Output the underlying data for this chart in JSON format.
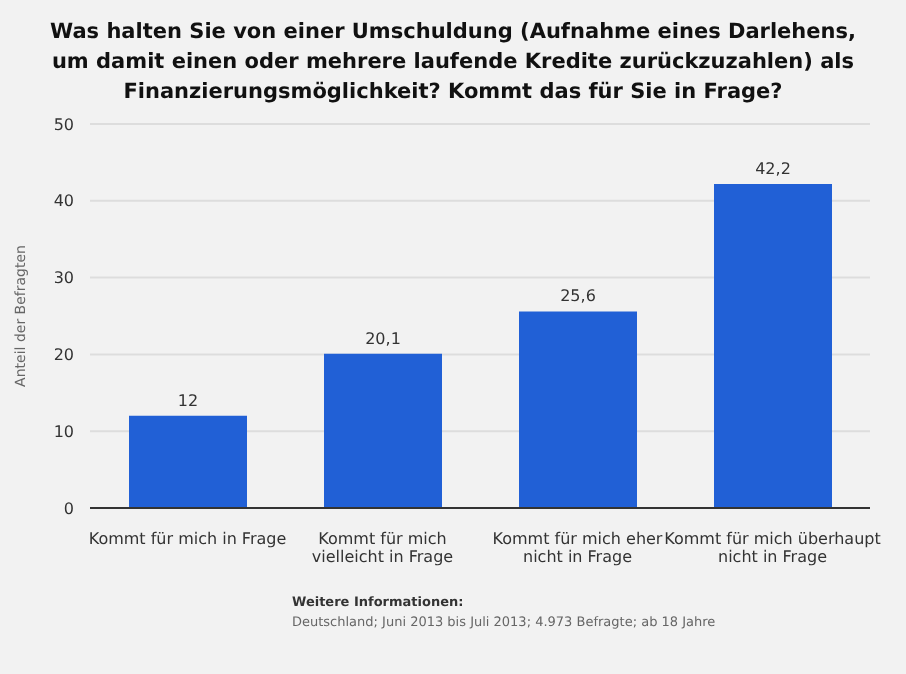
{
  "chart_data": {
    "type": "bar",
    "title": "Was halten Sie von einer Umschuldung (Aufnahme eines Darlehens, um damit einen oder mehrere laufende Kredite zurückzuzahlen) als Finanzierungsmöglichkeit? Kommt das für Sie in Frage?",
    "ylabel": "Anteil der Befragten",
    "categories": [
      "Kommt für mich in Frage",
      "Kommt für mich vielleicht in Frage",
      "Kommt für mich eher nicht in Frage",
      "Kommt für mich überhaupt nicht in Frage"
    ],
    "values": [
      12,
      20.1,
      25.6,
      42.2
    ],
    "value_labels": [
      "12",
      "20,1",
      "25,6",
      "42,2"
    ],
    "color": "#2160d6",
    "ylim": [
      0,
      50
    ],
    "yticks": [
      0,
      10,
      20,
      30,
      40,
      50
    ],
    "grid": "y",
    "annotations": [
      "Weitere Informationen:",
      "Deutschland; Juni 2013 bis Juli 2013; 4.973 Befragte; ab 18 Jahre"
    ]
  }
}
